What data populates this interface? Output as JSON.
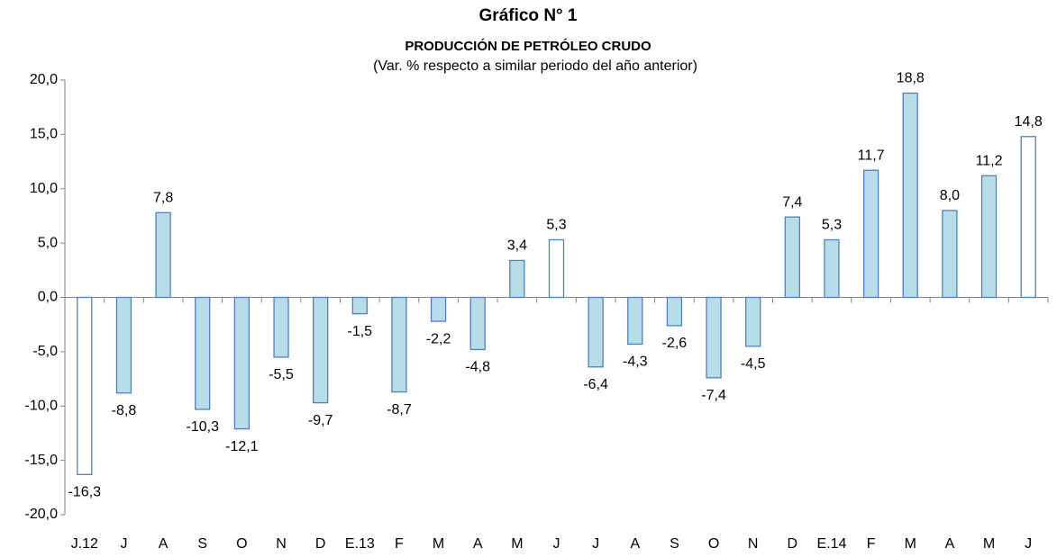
{
  "chart_data": {
    "type": "bar",
    "title": "Gráfico N° 1",
    "subtitle": "PRODUCCIÓN DE PETRÓLEO CRUDO",
    "note": "(Var. % respecto a similar periodo del año anterior)",
    "categories": [
      "J.12",
      "J",
      "A",
      "S",
      "O",
      "N",
      "D",
      "E.13",
      "F",
      "M",
      "A",
      "M",
      "J",
      "J",
      "A",
      "S",
      "O",
      "N",
      "D",
      "E.14",
      "F",
      "M",
      "A",
      "M",
      "J"
    ],
    "values": [
      -16.3,
      -8.8,
      7.8,
      -10.3,
      -12.1,
      -5.5,
      -9.7,
      -1.5,
      -8.7,
      -2.2,
      -4.8,
      3.4,
      5.3,
      -6.4,
      -4.3,
      -2.6,
      -7.4,
      -4.5,
      7.4,
      5.3,
      11.7,
      18.8,
      8.0,
      11.2,
      14.8
    ],
    "value_labels": [
      "-16,3",
      "-8,8",
      "7,8",
      "-10,3",
      "-12,1",
      "-5,5",
      "-9,7",
      "-1,5",
      "-8,7",
      "-2,2",
      "-4,8",
      "3,4",
      "5,3",
      "-6,4",
      "-4,3",
      "-2,6",
      "-7,4",
      "-4,5",
      "7,4",
      "5,3",
      "11,7",
      "18,8",
      "8,0",
      "11,2",
      "14,8"
    ],
    "colors": [
      "#ffffff",
      "#b7dee8",
      "#b7dee8",
      "#b7dee8",
      "#b7dee8",
      "#b7dee8",
      "#b7dee8",
      "#b7dee8",
      "#b7dee8",
      "#b7dee8",
      "#b7dee8",
      "#b7dee8",
      "#ffffff",
      "#b7dee8",
      "#b7dee8",
      "#b7dee8",
      "#b7dee8",
      "#b7dee8",
      "#b7dee8",
      "#b7dee8",
      "#b7dee8",
      "#b7dee8",
      "#b7dee8",
      "#b7dee8",
      "#ffffff"
    ],
    "edge_color": "#4f81bd",
    "ylim": [
      -20,
      20
    ],
    "yticks": [
      {
        "value": -20,
        "label": "-20,0"
      },
      {
        "value": -15,
        "label": "-15,0"
      },
      {
        "value": -10,
        "label": "-10,0"
      },
      {
        "value": -5,
        "label": "-5,0"
      },
      {
        "value": 0,
        "label": "0,0"
      },
      {
        "value": 5,
        "label": "5,0"
      },
      {
        "value": 10,
        "label": "10,0"
      },
      {
        "value": 15,
        "label": "15,0"
      },
      {
        "value": 20,
        "label": "20,0"
      }
    ],
    "grid": false
  }
}
